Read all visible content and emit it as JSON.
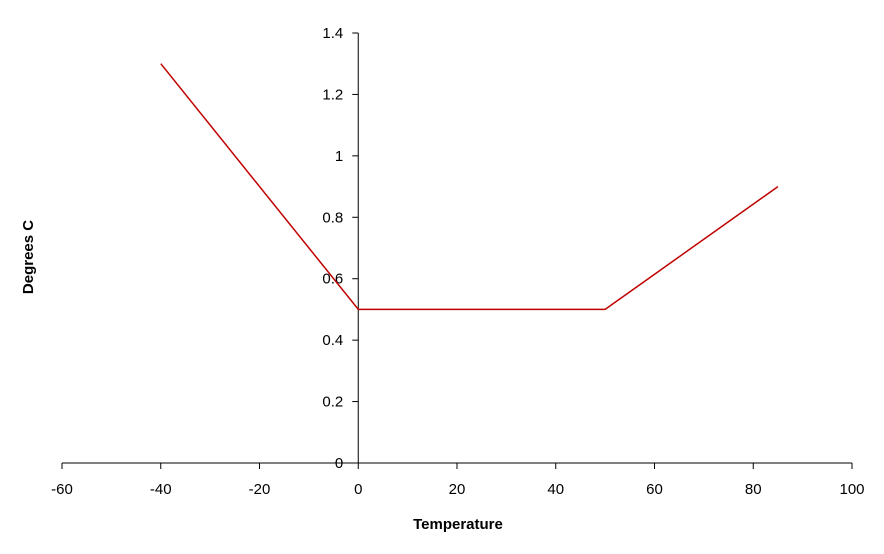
{
  "chart_data": {
    "type": "line",
    "title": "",
    "xlabel": "Temperature",
    "ylabel": "Degrees C",
    "xlim": [
      -60,
      100
    ],
    "ylim": [
      0,
      1.4
    ],
    "xticks": [
      -60,
      -40,
      -20,
      0,
      20,
      40,
      60,
      80,
      100
    ],
    "yticks": [
      0,
      0.2,
      0.4,
      0.6,
      0.8,
      1,
      1.2,
      1.4
    ],
    "grid": false,
    "legend": "none",
    "series": [
      {
        "color": "#c00000",
        "x": [
          -40,
          0,
          50,
          85
        ],
        "y": [
          1.3,
          0.5,
          0.5,
          0.9
        ]
      }
    ]
  }
}
